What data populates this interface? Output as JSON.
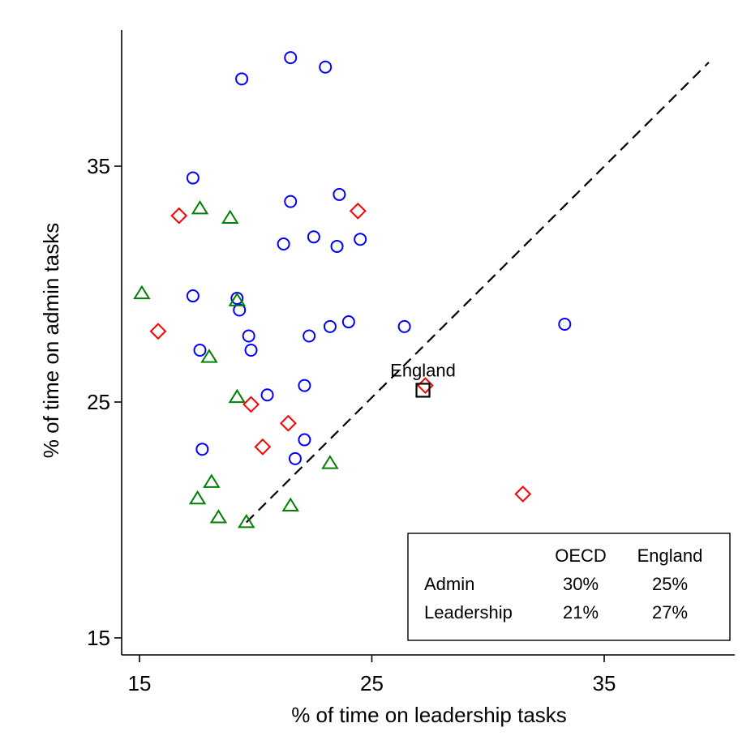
{
  "chart_data": {
    "type": "scatter",
    "xlabel": "% of time on leadership tasks",
    "ylabel": "% of time on admin tasks",
    "xlim": [
      14.5,
      40.5
    ],
    "ylim": [
      14.3,
      40.6
    ],
    "xticks": [
      15,
      25,
      35
    ],
    "yticks": [
      15,
      25,
      35
    ],
    "grid": false,
    "series": [
      {
        "marker": "circle",
        "color": "#0000ff",
        "points": [
          [
            21.5,
            39.6
          ],
          [
            23,
            39.2
          ],
          [
            19.4,
            38.7
          ],
          [
            17.3,
            34.5
          ],
          [
            21.5,
            33.5
          ],
          [
            23.6,
            33.8
          ],
          [
            22.5,
            32.0
          ],
          [
            21.2,
            31.7
          ],
          [
            23.5,
            31.6
          ],
          [
            24.5,
            31.9
          ],
          [
            17.3,
            29.5
          ],
          [
            19.2,
            29.4
          ],
          [
            19.3,
            28.9
          ],
          [
            23.2,
            28.2
          ],
          [
            24.0,
            28.4
          ],
          [
            26.4,
            28.2
          ],
          [
            33.3,
            28.3
          ],
          [
            17.6,
            27.2
          ],
          [
            19.7,
            27.8
          ],
          [
            19.8,
            27.2
          ],
          [
            22.3,
            27.8
          ],
          [
            22.1,
            25.7
          ],
          [
            20.5,
            25.3
          ],
          [
            22.1,
            23.4
          ],
          [
            21.7,
            22.6
          ],
          [
            17.7,
            23.0
          ]
        ]
      },
      {
        "marker": "triangle",
        "color": "#008000",
        "points": [
          [
            17.6,
            33.2
          ],
          [
            18.9,
            32.8
          ],
          [
            15.1,
            29.6
          ],
          [
            19.2,
            29.3
          ],
          [
            18.0,
            26.9
          ],
          [
            19.2,
            25.2
          ],
          [
            23.2,
            22.4
          ],
          [
            18.1,
            21.6
          ],
          [
            17.5,
            20.9
          ],
          [
            18.4,
            20.1
          ],
          [
            21.5,
            20.6
          ],
          [
            19.6,
            19.9
          ]
        ]
      },
      {
        "marker": "diamond",
        "color": "#ff0000",
        "points": [
          [
            16.7,
            32.9
          ],
          [
            24.4,
            33.1
          ],
          [
            15.8,
            28.0
          ],
          [
            19.8,
            24.9
          ],
          [
            21.4,
            24.1
          ],
          [
            20.3,
            23.1
          ],
          [
            27.3,
            25.7
          ],
          [
            31.5,
            21.1
          ]
        ]
      },
      {
        "marker": "square",
        "color": "#000000",
        "label": "England",
        "points": [
          [
            27.2,
            25.5
          ]
        ]
      }
    ],
    "reference_line": {
      "style": "dashed",
      "color": "#000000",
      "points": [
        [
          19.6,
          19.9
        ],
        [
          39.5,
          39.4
        ]
      ]
    },
    "legend": {
      "placement": "bottom-right",
      "header": [
        "",
        "OECD",
        "England"
      ],
      "rows": [
        [
          "Admin",
          "30%",
          "25%"
        ],
        [
          "Leadership",
          "21%",
          "27%"
        ]
      ]
    }
  }
}
